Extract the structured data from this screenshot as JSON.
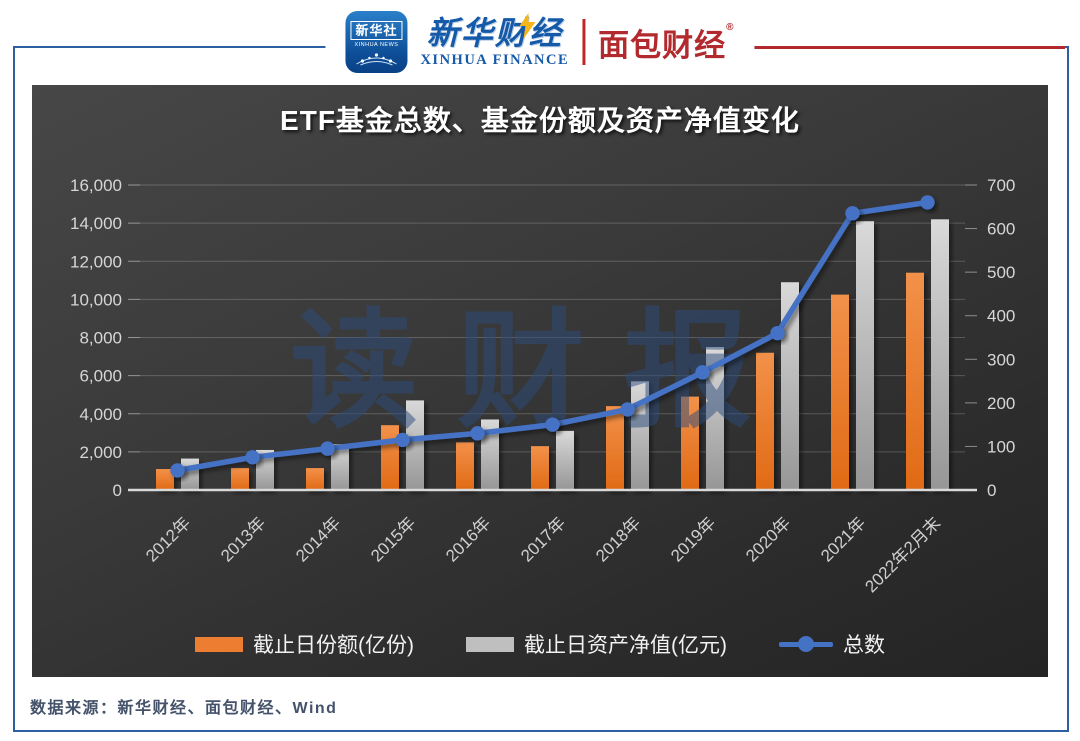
{
  "header": {
    "xinhua_news": {
      "cn": "新华社",
      "en": "XINHUA NEWS"
    },
    "xinhua_finance": {
      "cn": "新华财经",
      "en": "XINHUA FINANCE"
    },
    "mianbao": {
      "cn": "面包财经",
      "reg": "®"
    }
  },
  "chart_data": {
    "type": "bar",
    "subtype": "combo-bar-line-dual-axis",
    "title": "ETF基金总数、基金份额及资产净值变化",
    "categories": [
      "2012年",
      "2013年",
      "2014年",
      "2015年",
      "2016年",
      "2017年",
      "2018年",
      "2019年",
      "2020年",
      "2021年",
      "2022年2月末"
    ],
    "series": [
      {
        "name": "截止日份额(亿份)",
        "type": "bar",
        "axis": "left",
        "color": "#ED7D31",
        "values": [
          1100,
          1150,
          1150,
          3400,
          2500,
          2300,
          4400,
          4900,
          7200,
          10250,
          11400
        ]
      },
      {
        "name": "截止日资产净值(亿元)",
        "type": "bar",
        "axis": "left",
        "color": "#BFBFBF",
        "values": [
          1650,
          2100,
          2400,
          4700,
          3700,
          3100,
          5700,
          7500,
          10900,
          14100,
          14200
        ]
      },
      {
        "name": "总数",
        "type": "line",
        "axis": "right",
        "color": "#4472C4",
        "values": [
          45,
          75,
          95,
          115,
          130,
          150,
          185,
          270,
          360,
          635,
          660
        ]
      }
    ],
    "left_axis": {
      "min": 0,
      "max": 16000,
      "step": 2000,
      "tick_labels": [
        "0",
        "2,000",
        "4,000",
        "6,000",
        "8,000",
        "10,000",
        "12,000",
        "14,000",
        "16,000"
      ]
    },
    "right_axis": {
      "min": 0,
      "max": 700,
      "step": 100,
      "tick_labels": [
        "0",
        "100",
        "200",
        "300",
        "400",
        "500",
        "600",
        "700"
      ]
    },
    "grid": true,
    "legend_position": "bottom",
    "watermark": "读财报"
  },
  "footer": {
    "source": "数据来源：新华财经、面包财经、Wind"
  }
}
